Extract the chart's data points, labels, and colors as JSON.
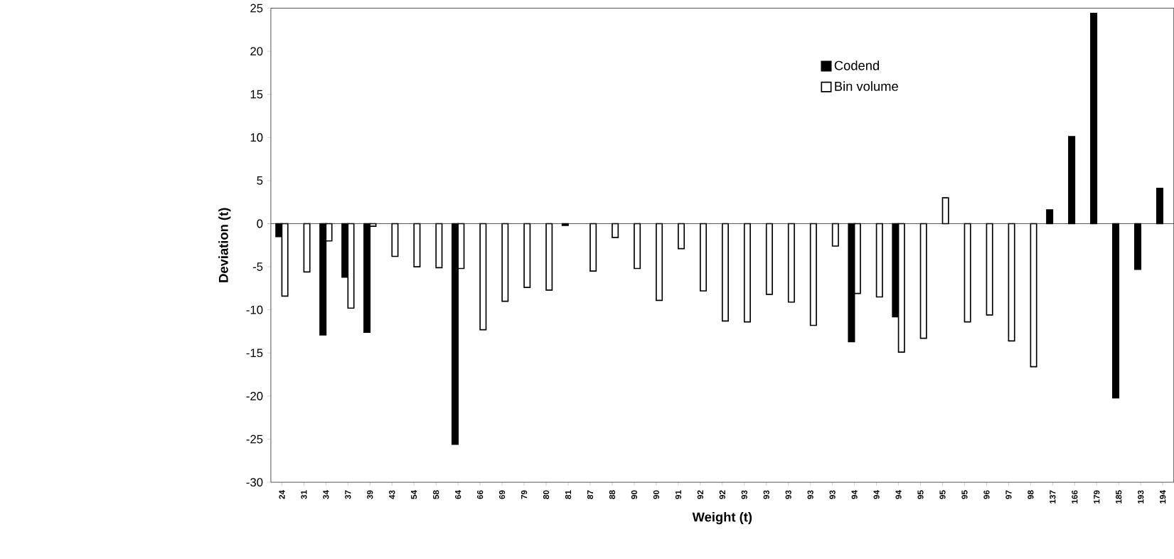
{
  "chart_data": {
    "type": "bar",
    "xlabel": "Weight (t)",
    "ylabel": "Deviation (t)",
    "categories": [
      "24",
      "31",
      "34",
      "37",
      "39",
      "43",
      "54",
      "58",
      "64",
      "66",
      "69",
      "79",
      "80",
      "81",
      "87",
      "88",
      "90",
      "90",
      "91",
      "92",
      "92",
      "93",
      "93",
      "93",
      "93",
      "93",
      "94",
      "94",
      "94",
      "95",
      "95",
      "95",
      "96",
      "97",
      "98",
      "137",
      "166",
      "179",
      "185",
      "193",
      "194"
    ],
    "series": [
      {
        "name": "Codend",
        "color": "#000000",
        "values": [
          -1.5,
          null,
          -12.9,
          -6.2,
          -12.6,
          null,
          null,
          null,
          -25.6,
          null,
          null,
          null,
          null,
          -0.2,
          null,
          null,
          null,
          null,
          null,
          null,
          null,
          null,
          null,
          null,
          null,
          null,
          -13.7,
          null,
          -10.8,
          null,
          null,
          null,
          null,
          null,
          null,
          1.6,
          10.1,
          24.4,
          -20.2,
          -5.3,
          4.1
        ]
      },
      {
        "name": "Bin volume",
        "color": "#ffffff",
        "values": [
          -8.4,
          -5.6,
          -2.0,
          -9.8,
          -0.3,
          -3.8,
          -5.0,
          -5.1,
          -5.2,
          -12.3,
          -9.0,
          -7.4,
          -7.7,
          null,
          -5.5,
          -1.6,
          -5.2,
          -8.9,
          -2.9,
          -7.8,
          -11.3,
          -11.4,
          -8.2,
          -9.1,
          -11.8,
          -2.6,
          -8.1,
          -8.5,
          -14.9,
          -13.3,
          3.0,
          -11.4,
          -10.6,
          -13.6,
          -16.6,
          null,
          null,
          null,
          null,
          null,
          null
        ]
      }
    ],
    "ylim": [
      -30,
      25
    ],
    "yticks": [
      -30,
      -25,
      -20,
      -15,
      -10,
      -5,
      0,
      5,
      10,
      15,
      20,
      25
    ],
    "legend": "top right"
  }
}
